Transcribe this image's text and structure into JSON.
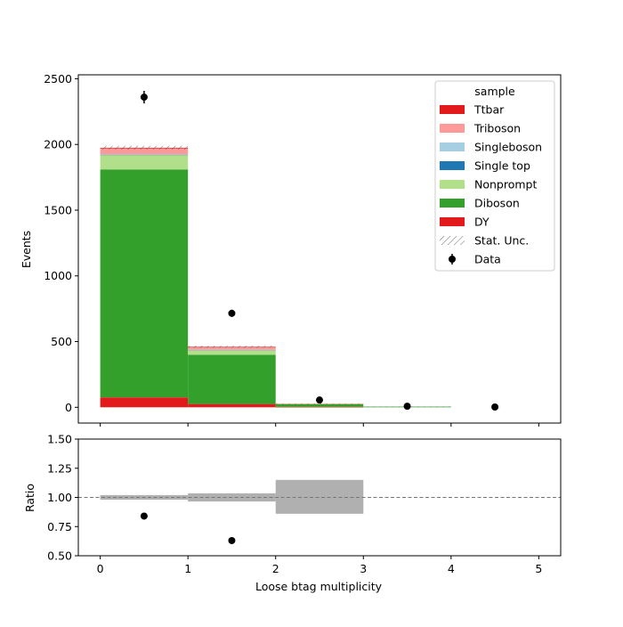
{
  "chart_data": {
    "type": "bar",
    "stacked": true,
    "xlabel": "Loose btag multiplicity",
    "ylabel": "Events",
    "bin_edges": [
      0,
      1,
      2,
      3,
      4,
      5
    ],
    "xticks": [
      "0",
      "1",
      "2",
      "3",
      "4",
      "5"
    ],
    "xlim": [
      -0.25,
      5.25
    ],
    "ylim": [
      -120,
      2530
    ],
    "yticks": [
      "0",
      "500",
      "1000",
      "1500",
      "2000",
      "2500"
    ],
    "series": [
      {
        "name": "DY",
        "color": "#e31a1c",
        "values": [
          75,
          25,
          3,
          0,
          0
        ]
      },
      {
        "name": "Diboson",
        "color": "#33a02c",
        "values": [
          1735,
          375,
          22,
          5,
          0
        ]
      },
      {
        "name": "Nonprompt",
        "color": "#b2df8a",
        "values": [
          110,
          35,
          2,
          0,
          0
        ]
      },
      {
        "name": "Single top",
        "color": "#1f78b4",
        "values": [
          3,
          1,
          0,
          0,
          0
        ]
      },
      {
        "name": "Singleboson",
        "color": "#a6cee3",
        "values": [
          2,
          1,
          0,
          0,
          0
        ]
      },
      {
        "name": "Triboson",
        "color": "#fb9a99",
        "values": [
          45,
          20,
          1,
          0,
          0
        ]
      },
      {
        "name": "Ttbar",
        "color": "#e31a1c",
        "values": [
          5,
          3,
          0,
          0,
          0
        ]
      }
    ],
    "stat_unc": [
      15,
      8,
      2,
      1,
      0
    ],
    "data": {
      "name": "Data",
      "x": [
        0.5,
        1.5,
        2.5,
        3.5,
        4.5
      ],
      "y": [
        2360,
        715,
        55,
        8,
        2
      ],
      "yerr": [
        48,
        27,
        7,
        3,
        1
      ]
    },
    "legend": {
      "title": "sample",
      "placement": "upper right",
      "entries": [
        "Ttbar",
        "Triboson",
        "Singleboson",
        "Single top",
        "Nonprompt",
        "Diboson",
        "DY",
        "Stat. Unc.",
        "Data"
      ]
    },
    "ratio_panel": {
      "ylabel": "Ratio",
      "ylim": [
        0.5,
        1.5
      ],
      "yticks": [
        "0.50",
        "0.75",
        "1.00",
        "1.25",
        "1.50"
      ],
      "reference_line": 1.0,
      "unc_band": [
        [
          0.98,
          1.02
        ],
        [
          0.965,
          1.035
        ],
        [
          0.86,
          1.15
        ],
        null,
        null
      ],
      "unc_color": "#b0b0b0",
      "points_x": [
        0.5,
        1.5
      ],
      "points_y": [
        0.84,
        0.63
      ]
    }
  }
}
